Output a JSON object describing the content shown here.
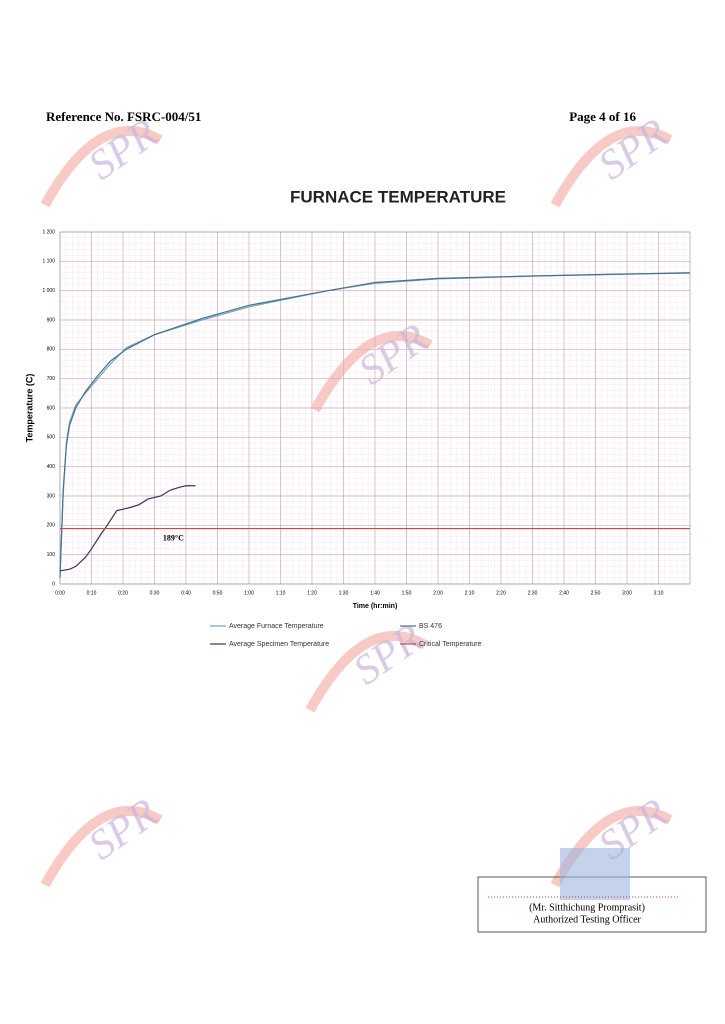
{
  "header": {
    "reference": "Reference No. FSRC-004/51",
    "page": "Page 4 of 16"
  },
  "watermark": "SPR",
  "chart_data": {
    "type": "line",
    "title": "FURNACE TEMPERATURE",
    "x_label": "Time (hr:min)",
    "y_label": "Temperature (C)",
    "xlim": [
      0,
      200
    ],
    "ylim": [
      0,
      1200
    ],
    "xticks": [
      {
        "value": 0,
        "label": "0:00"
      },
      {
        "value": 10,
        "label": "0:10"
      },
      {
        "value": 20,
        "label": "0:20"
      },
      {
        "value": 30,
        "label": "0:30"
      },
      {
        "value": 40,
        "label": "0:40"
      },
      {
        "value": 50,
        "label": "0:50"
      },
      {
        "value": 60,
        "label": "1:00"
      },
      {
        "value": 70,
        "label": "1:10"
      },
      {
        "value": 80,
        "label": "1:20"
      },
      {
        "value": 90,
        "label": "1:30"
      },
      {
        "value": 100,
        "label": "1:40"
      },
      {
        "value": 110,
        "label": "1:50"
      },
      {
        "value": 120,
        "label": "2:00"
      },
      {
        "value": 130,
        "label": "2:10"
      },
      {
        "value": 140,
        "label": "2:20"
      },
      {
        "value": 150,
        "label": "2:30"
      },
      {
        "value": 160,
        "label": "2:40"
      },
      {
        "value": 170,
        "label": "2:50"
      },
      {
        "value": 180,
        "label": "3:00"
      },
      {
        "value": 190,
        "label": "3:10"
      }
    ],
    "yticks": [
      0,
      100,
      200,
      300,
      400,
      500,
      600,
      700,
      800,
      900,
      {
        "value": 1000,
        "label": "1 000"
      },
      {
        "value": 1100,
        "label": "1 100"
      },
      {
        "value": 1200,
        "label": "1 200"
      }
    ],
    "grid": true,
    "series": [
      {
        "name": "Average Furnace Temperature",
        "color": "#6aa6bf",
        "x": [
          0,
          1,
          2,
          3,
          5,
          8,
          12,
          16,
          21,
          30,
          45,
          60,
          85,
          100,
          120,
          150,
          175,
          200
        ],
        "values": [
          30,
          300,
          480,
          550,
          610,
          650,
          700,
          750,
          805,
          850,
          900,
          945,
          1000,
          1025,
          1040,
          1050,
          1055,
          1062
        ]
      },
      {
        "name": "BS 476",
        "color": "#4a6f8a",
        "x": [
          0,
          1,
          2,
          3,
          5,
          8,
          12,
          16,
          21,
          30,
          45,
          60,
          85,
          100,
          120,
          150,
          175,
          200
        ],
        "values": [
          20,
          320,
          470,
          540,
          600,
          655,
          710,
          760,
          800,
          850,
          905,
          950,
          1000,
          1028,
          1042,
          1050,
          1056,
          1060
        ]
      },
      {
        "name": "Average Specimen Temperature",
        "color": "#3d2f5b",
        "x": [
          0,
          3,
          5,
          8,
          10,
          13,
          15,
          18,
          22,
          25,
          28,
          32,
          35,
          38,
          40,
          43
        ],
        "values": [
          45,
          50,
          60,
          90,
          120,
          170,
          200,
          250,
          260,
          270,
          290,
          300,
          320,
          330,
          335,
          335
        ]
      },
      {
        "name": "Critical Temperature",
        "color": "#d04545",
        "x": [
          0,
          200
        ],
        "values": [
          189,
          189
        ]
      }
    ],
    "annotations": [
      {
        "text": "189°C",
        "x": 36,
        "y": 189
      }
    ]
  },
  "signature": {
    "name": "(Mr. Sitthichung Promprasit)",
    "role": "Authorized Testing Officer"
  }
}
